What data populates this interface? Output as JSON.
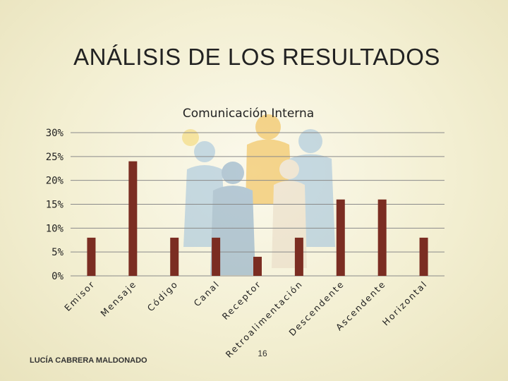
{
  "slide": {
    "title": "ANÁLISIS DE LOS RESULTADOS",
    "footer_name": "LUCÍA CABRERA MALDONADO",
    "page_number": "16"
  },
  "chart_data": {
    "type": "bar",
    "title": "Comunicación Interna",
    "categories": [
      "Emisor",
      "Mensaje",
      "Código",
      "Canal",
      "Receptor",
      "Retroalimentación",
      "Descendente",
      "Ascendente",
      "Horizontal"
    ],
    "values": [
      8,
      24,
      8,
      8,
      4,
      8,
      16,
      16,
      8
    ],
    "yticks": [
      "0%",
      "5%",
      "10%",
      "15%",
      "20%",
      "25%",
      "30%"
    ],
    "ylim": [
      0,
      30
    ],
    "grid": true,
    "legend": "none",
    "bar_color": "#7b2d22",
    "grid_color": "#8a8a8a"
  }
}
